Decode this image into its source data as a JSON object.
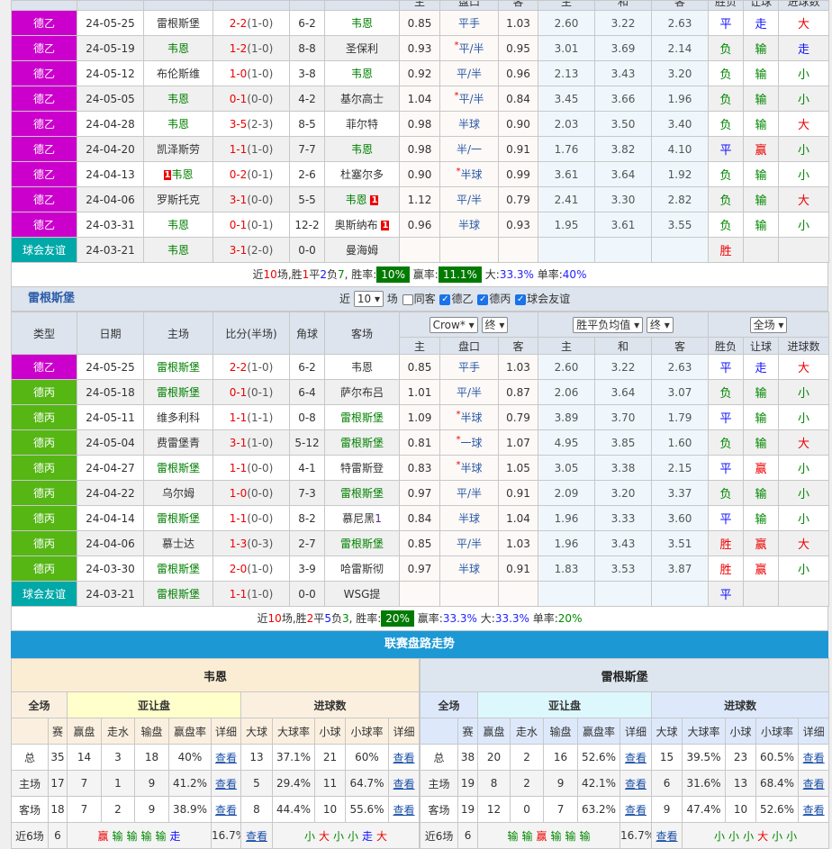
{
  "colors": {
    "de2": "#cc00cc",
    "de3": "#55b614",
    "friendly": "#00a8a8"
  },
  "odds_header": [
    "主",
    "盘口",
    "客",
    "主",
    "和",
    "客",
    "胜负",
    "让球",
    "进球数"
  ],
  "columns": [
    "类型",
    "日期",
    "主场",
    "比分(半场)",
    "角球",
    "客场"
  ],
  "table1": {
    "focus": "韦恩",
    "rows": [
      {
        "league": "德乙",
        "lt": "de2",
        "date": "24-05-25",
        "home": "雷根斯堡",
        "ft": "2-2",
        "ht": "(1-0)",
        "corner": "6-2",
        "away": "韦恩",
        "h": "0.85",
        "line": "平手",
        "star": false,
        "a": "1.03",
        "w": "2.60",
        "d": "3.22",
        "l": "2.63",
        "r": "平",
        "hr": "走",
        "ou": "大"
      },
      {
        "league": "德乙",
        "lt": "de2",
        "date": "24-05-19",
        "home": "韦恩",
        "ft": "1-2",
        "ht": "(1-0)",
        "corner": "8-8",
        "away": "圣保利",
        "h": "0.93",
        "line": "平/半",
        "star": true,
        "a": "0.95",
        "w": "3.01",
        "d": "3.69",
        "l": "2.14",
        "r": "负",
        "hr": "输",
        "ou": "走"
      },
      {
        "league": "德乙",
        "lt": "de2",
        "date": "24-05-12",
        "home": "布伦斯维",
        "ft": "1-0",
        "ht": "(1-0)",
        "corner": "3-8",
        "away": "韦恩",
        "h": "0.92",
        "line": "平/半",
        "star": false,
        "a": "0.96",
        "w": "2.13",
        "d": "3.43",
        "l": "3.20",
        "r": "负",
        "hr": "输",
        "ou": "小"
      },
      {
        "league": "德乙",
        "lt": "de2",
        "date": "24-05-05",
        "home": "韦恩",
        "ft": "0-1",
        "ht": "(0-0)",
        "corner": "4-2",
        "away": "基尔高士",
        "h": "1.04",
        "line": "平/半",
        "star": true,
        "a": "0.84",
        "w": "3.45",
        "d": "3.66",
        "l": "1.96",
        "r": "负",
        "hr": "输",
        "ou": "小"
      },
      {
        "league": "德乙",
        "lt": "de2",
        "date": "24-04-28",
        "home": "韦恩",
        "ft": "3-5",
        "ht": "(2-3)",
        "corner": "8-5",
        "away": "菲尔特",
        "h": "0.98",
        "line": "半球",
        "star": false,
        "a": "0.90",
        "w": "2.03",
        "d": "3.50",
        "l": "3.40",
        "r": "负",
        "hr": "输",
        "ou": "大"
      },
      {
        "league": "德乙",
        "lt": "de2",
        "date": "24-04-20",
        "home": "凯泽斯劳",
        "ft": "1-1",
        "ht": "(1-0)",
        "corner": "7-7",
        "away": "韦恩",
        "h": "0.98",
        "line": "半/一",
        "star": false,
        "a": "0.91",
        "w": "1.76",
        "d": "3.82",
        "l": "4.10",
        "r": "平",
        "hr": "赢",
        "ou": "小"
      },
      {
        "league": "德乙",
        "lt": "de2",
        "date": "24-04-13",
        "home": "韦恩",
        "home_red": "1",
        "ft": "0-2",
        "ht": "(0-1)",
        "corner": "2-6",
        "away": "杜塞尔多",
        "h": "0.90",
        "line": "半球",
        "star": true,
        "a": "0.99",
        "w": "3.61",
        "d": "3.64",
        "l": "1.92",
        "r": "负",
        "hr": "输",
        "ou": "小"
      },
      {
        "league": "德乙",
        "lt": "de2",
        "date": "24-04-06",
        "home": "罗斯托克",
        "ft": "3-1",
        "ht": "(0-0)",
        "corner": "5-5",
        "away": "韦恩",
        "away_red": "1",
        "h": "1.12",
        "line": "平/半",
        "star": false,
        "a": "0.79",
        "w": "2.41",
        "d": "3.30",
        "l": "2.82",
        "r": "负",
        "hr": "输",
        "ou": "大"
      },
      {
        "league": "德乙",
        "lt": "de2",
        "date": "24-03-31",
        "home": "韦恩",
        "ft": "0-1",
        "ht": "(0-1)",
        "corner": "12-2",
        "away": "奥斯纳布",
        "away_red": "1",
        "h": "0.96",
        "line": "半球",
        "star": false,
        "a": "0.93",
        "w": "1.95",
        "d": "3.61",
        "l": "3.55",
        "r": "负",
        "hr": "输",
        "ou": "小"
      },
      {
        "league": "球会友谊",
        "lt": "friendly",
        "date": "24-03-21",
        "home": "韦恩",
        "ft": "3-1",
        "ht": "(2-0)",
        "corner": "0-0",
        "away": "曼海姆",
        "h": "",
        "line": "",
        "star": false,
        "a": "",
        "w": "",
        "d": "",
        "l": "",
        "r": "胜",
        "hr": "",
        "ou": ""
      }
    ],
    "summary": {
      "p1": "近",
      "n": "10",
      "p2": "场,胜",
      "win": "1",
      "p3": "平",
      "draw": "2",
      "p4": "负",
      "loss": "7",
      "p5": ", 胜率:",
      "win_rate": "10%",
      "p6": " 赢率:",
      "hc_rate": "11.1%",
      "p7": " 大:",
      "big": "33.3%",
      "p8": " 单率:",
      "odd": "40%"
    }
  },
  "table2_bar": {
    "team": "雷根斯堡",
    "near": "近",
    "count": "10",
    "chang": "场",
    "same": "同客",
    "f1": "德乙",
    "f2": "德丙",
    "f3": "球会友谊",
    "sel1": "Crow*",
    "sel2": "终",
    "sel3": "胜平负均值",
    "sel4": "终",
    "sel5": "全场"
  },
  "table2": {
    "focus": "雷根斯堡",
    "rows": [
      {
        "league": "德乙",
        "lt": "de2",
        "date": "24-05-25",
        "home": "雷根斯堡",
        "ft": "2-2",
        "ht": "(1-0)",
        "corner": "6-2",
        "away": "韦恩",
        "h": "0.85",
        "line": "平手",
        "star": false,
        "a": "1.03",
        "w": "2.60",
        "d": "3.22",
        "l": "2.63",
        "r": "平",
        "hr": "走",
        "ou": "大"
      },
      {
        "league": "德丙",
        "lt": "de3",
        "date": "24-05-18",
        "home": "雷根斯堡",
        "ft": "0-1",
        "ht": "(0-1)",
        "corner": "6-4",
        "away": "萨尔布吕",
        "h": "1.01",
        "line": "平/半",
        "star": false,
        "a": "0.87",
        "w": "2.06",
        "d": "3.64",
        "l": "3.07",
        "r": "负",
        "hr": "输",
        "ou": "小"
      },
      {
        "league": "德丙",
        "lt": "de3",
        "date": "24-05-11",
        "home": "维多利科",
        "ft": "1-1",
        "ht": "(1-1)",
        "corner": "0-8",
        "away": "雷根斯堡",
        "h": "1.09",
        "line": "半球",
        "star": true,
        "a": "0.79",
        "w": "3.89",
        "d": "3.70",
        "l": "1.79",
        "r": "平",
        "hr": "输",
        "ou": "小"
      },
      {
        "league": "德丙",
        "lt": "de3",
        "date": "24-05-04",
        "home": "费雷堡青",
        "ft": "3-1",
        "ht": "(1-0)",
        "corner": "5-12",
        "away": "雷根斯堡",
        "h": "0.81",
        "line": "一球",
        "star": true,
        "a": "1.07",
        "w": "4.95",
        "d": "3.85",
        "l": "1.60",
        "r": "负",
        "hr": "输",
        "ou": "大"
      },
      {
        "league": "德丙",
        "lt": "de3",
        "date": "24-04-27",
        "home": "雷根斯堡",
        "ft": "1-1",
        "ht": "(0-0)",
        "corner": "4-1",
        "away": "特雷斯登",
        "h": "0.83",
        "line": "半球",
        "star": true,
        "a": "1.05",
        "w": "3.05",
        "d": "3.38",
        "l": "2.15",
        "r": "平",
        "hr": "赢",
        "ou": "小"
      },
      {
        "league": "德丙",
        "lt": "de3",
        "date": "24-04-22",
        "home": "乌尔姆",
        "ft": "1-0",
        "ht": "(0-0)",
        "corner": "7-3",
        "away": "雷根斯堡",
        "h": "0.97",
        "line": "平/半",
        "star": false,
        "a": "0.91",
        "w": "2.09",
        "d": "3.20",
        "l": "3.37",
        "r": "负",
        "hr": "输",
        "ou": "小"
      },
      {
        "league": "德丙",
        "lt": "de3",
        "date": "24-04-14",
        "home": "雷根斯堡",
        "ft": "1-1",
        "ht": "(0-0)",
        "corner": "8-2",
        "away": "慕尼黑",
        "away_rank": "1",
        "h": "0.84",
        "line": "半球",
        "star": false,
        "a": "1.04",
        "w": "1.96",
        "d": "3.33",
        "l": "3.60",
        "r": "平",
        "hr": "输",
        "ou": "小"
      },
      {
        "league": "德丙",
        "lt": "de3",
        "date": "24-04-06",
        "home": "慕士达",
        "ft": "1-3",
        "ht": "(0-3)",
        "corner": "2-7",
        "away": "雷根斯堡",
        "h": "0.85",
        "line": "平/半",
        "star": false,
        "a": "1.03",
        "w": "1.96",
        "d": "3.43",
        "l": "3.51",
        "r": "胜",
        "hr": "赢",
        "ou": "大"
      },
      {
        "league": "德丙",
        "lt": "de3",
        "date": "24-03-30",
        "home": "雷根斯堡",
        "ft": "2-0",
        "ht": "(1-0)",
        "corner": "3-9",
        "away": "哈雷斯彻",
        "h": "0.97",
        "line": "半球",
        "star": false,
        "a": "0.91",
        "w": "1.83",
        "d": "3.53",
        "l": "3.87",
        "r": "胜",
        "hr": "赢",
        "ou": "小"
      },
      {
        "league": "球会友谊",
        "lt": "friendly",
        "date": "24-03-21",
        "home": "雷根斯堡",
        "ft": "1-1",
        "ht": "(1-0)",
        "corner": "0-0",
        "away": "WSG提",
        "h": "",
        "line": "",
        "star": false,
        "a": "",
        "w": "",
        "d": "",
        "l": "",
        "r": "平",
        "hr": "",
        "ou": ""
      }
    ],
    "summary": {
      "p1": "近",
      "n": "10",
      "p2": "场,胜",
      "win": "2",
      "p3": "平",
      "draw": "5",
      "p4": "负",
      "loss": "3",
      "p5": ", 胜率:",
      "win_rate": "20%",
      "p6": " 赢率:",
      "hc_rate": "33.3%",
      "p7": " 大:",
      "big": "33.3%",
      "p8": " 单率:",
      "odd": "20%"
    }
  },
  "trend": {
    "title": "联赛盘路走势",
    "labels": {
      "full": "全场",
      "ah": "亚让盘",
      "goals": "进球数",
      "cols": [
        "赛",
        "赢盘",
        "走水",
        "输盘",
        "赢盘率",
        "详细",
        "大球",
        "大球率",
        "小球",
        "小球率",
        "详细"
      ],
      "view": "查看"
    },
    "teams": [
      {
        "name": "韦恩",
        "rows": [
          [
            "总",
            "35",
            "14",
            "3",
            "18",
            "40%",
            "13",
            "37.1%",
            "21",
            "60%"
          ],
          [
            "主场",
            "17",
            "7",
            "1",
            "9",
            "41.2%",
            "5",
            "29.4%",
            "11",
            "64.7%"
          ],
          [
            "客场",
            "18",
            "7",
            "2",
            "9",
            "38.9%",
            "8",
            "44.4%",
            "10",
            "55.6%"
          ]
        ],
        "last": {
          "label": "近6场",
          "n": "6",
          "ah": [
            "赢",
            "输",
            "输",
            "输",
            "输",
            "走"
          ],
          "rate": "16.7%",
          "ou": [
            "小",
            "大",
            "小",
            "小",
            "走",
            "大"
          ]
        }
      },
      {
        "name": "雷根斯堡",
        "rows": [
          [
            "总",
            "38",
            "20",
            "2",
            "16",
            "52.6%",
            "15",
            "39.5%",
            "23",
            "60.5%"
          ],
          [
            "主场",
            "19",
            "8",
            "2",
            "9",
            "42.1%",
            "6",
            "31.6%",
            "13",
            "68.4%"
          ],
          [
            "客场",
            "19",
            "12",
            "0",
            "7",
            "63.2%",
            "9",
            "47.4%",
            "10",
            "52.6%"
          ]
        ],
        "last": {
          "label": "近6场",
          "n": "6",
          "ah": [
            "输",
            "输",
            "赢",
            "输",
            "输",
            "输"
          ],
          "rate": "16.7%",
          "ou": [
            "小",
            "小",
            "小",
            "大",
            "小",
            "小"
          ]
        }
      }
    ]
  }
}
